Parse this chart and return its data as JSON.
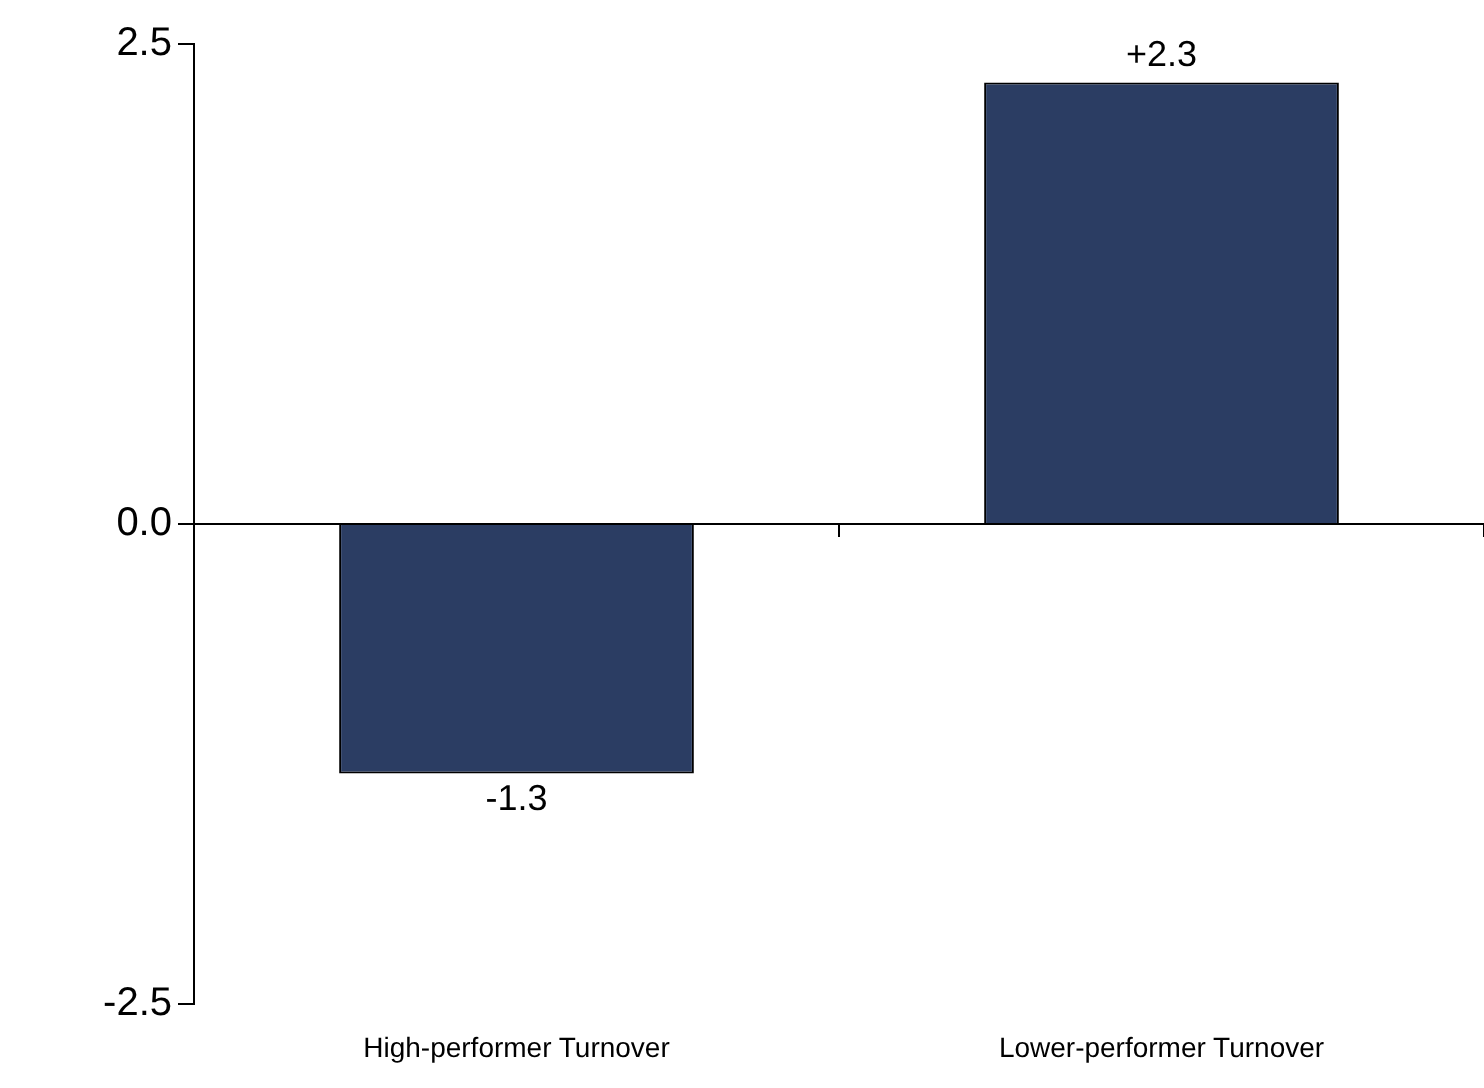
{
  "chart_data": {
    "type": "bar",
    "categories": [
      "High-performer Turnover",
      "Lower-performer Turnover"
    ],
    "values": [
      -1.3,
      2.3
    ],
    "value_labels": [
      "-1.3",
      "+2.3"
    ],
    "color": "#2b3d63",
    "ylim": [
      -2.5,
      2.5
    ],
    "yticks": [
      -2.5,
      {
        "value": 0,
        "label": "0.0"
      },
      2.5
    ],
    "legend": false
  }
}
